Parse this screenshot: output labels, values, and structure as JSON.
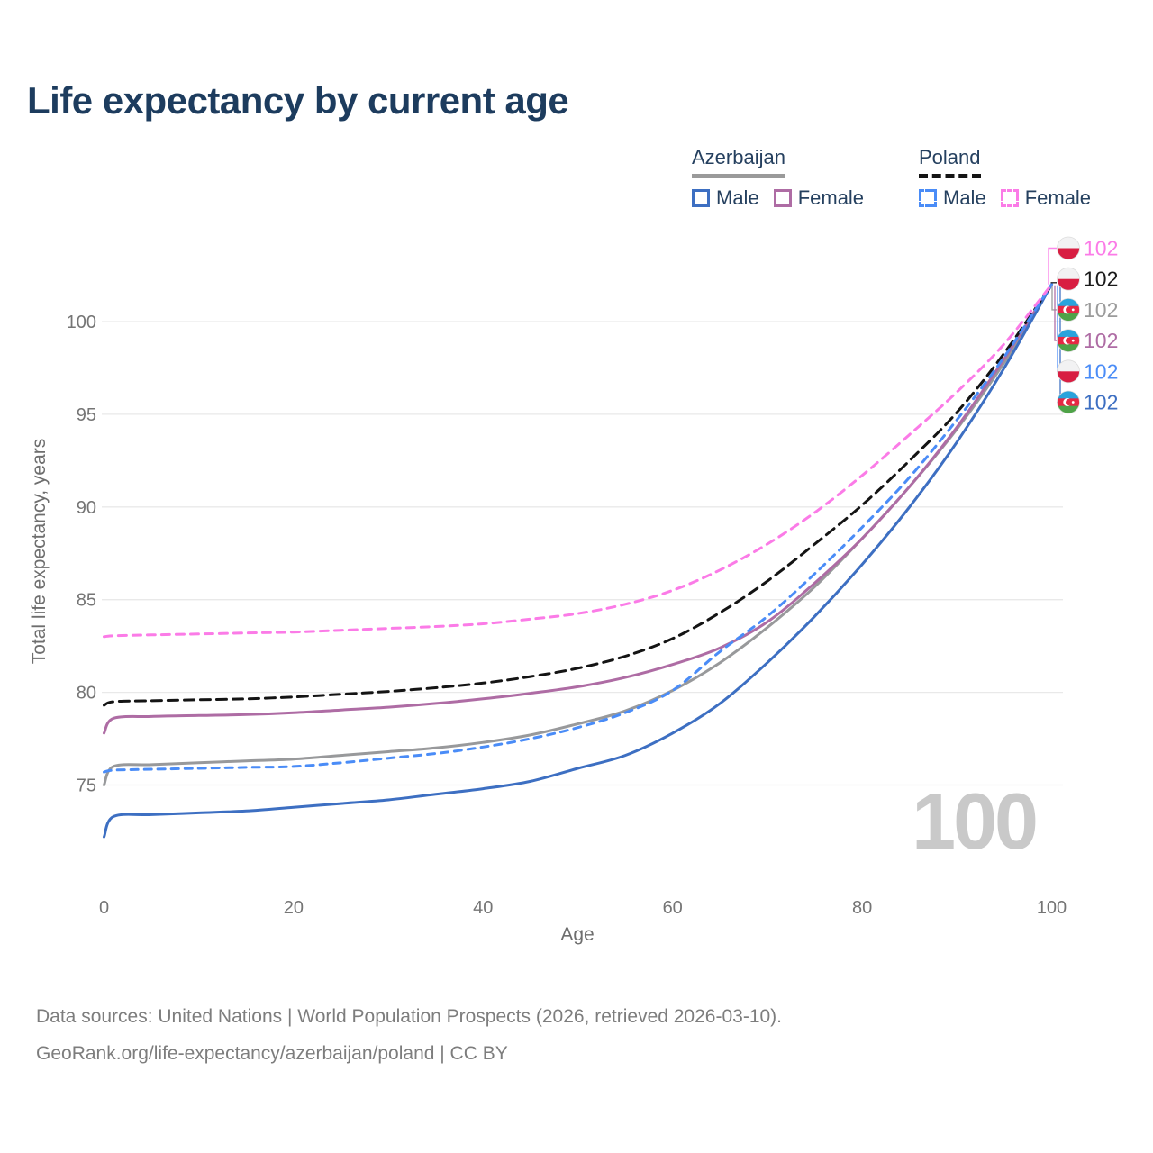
{
  "title": "Life expectancy by current age",
  "legend": {
    "groups": [
      {
        "label": "Azerbaijan",
        "line_style": "solid",
        "line_color": "#9a9a9a",
        "items": [
          {
            "label": "Male",
            "color": "#3d6fc2",
            "dash": "solid"
          },
          {
            "label": "Female",
            "color": "#ae6ca4",
            "dash": "solid"
          }
        ]
      },
      {
        "label": "Poland",
        "line_style": "dashed",
        "line_color": "#141414",
        "items": [
          {
            "label": "Male",
            "color": "#4a8cf7",
            "dash": "dashed"
          },
          {
            "label": "Female",
            "color": "#fb7be7",
            "dash": "dashed"
          }
        ]
      }
    ]
  },
  "chart_data": {
    "type": "line",
    "title": "Life expectancy by current age",
    "xlabel": "Age",
    "ylabel": "Total life expectancy, years",
    "xticks": [
      0,
      20,
      40,
      60,
      80,
      100
    ],
    "yticks": [
      75,
      80,
      85,
      90,
      95,
      100
    ],
    "xlim": [
      0,
      100
    ],
    "ylim": [
      71.5,
      103
    ],
    "grid": "horizontal-only",
    "grid_color": "#e9e9e9",
    "tick_color": "#757575",
    "hover_age_label": "100",
    "x": [
      0,
      1,
      5,
      10,
      15,
      20,
      25,
      30,
      35,
      40,
      45,
      50,
      55,
      60,
      65,
      70,
      75,
      80,
      85,
      90,
      95,
      100
    ],
    "series": [
      {
        "name": "Azerbaijan",
        "country": "Azerbaijan",
        "sex": "Both",
        "color": "#98999b",
        "label_color": "#9b9b9b",
        "dash": "solid",
        "flag": "az",
        "end_label": "102",
        "end_value": 102,
        "end_row": 2,
        "values": [
          75.0,
          76.0,
          76.1,
          76.2,
          76.3,
          76.4,
          76.6,
          76.8,
          77.0,
          77.3,
          77.7,
          78.3,
          79.0,
          80.1,
          81.6,
          83.5,
          85.7,
          88.3,
          91.1,
          94.2,
          97.8,
          102
        ]
      },
      {
        "name": "Azerbaijan Female",
        "country": "Azerbaijan",
        "sex": "Female",
        "color": "#ae6ca4",
        "label_color": "#ae6ca4",
        "dash": "solid",
        "flag": "az",
        "end_label": "102",
        "end_value": 102,
        "end_row": 3,
        "values": [
          77.8,
          78.6,
          78.7,
          78.75,
          78.8,
          78.9,
          79.05,
          79.2,
          79.4,
          79.65,
          79.95,
          80.3,
          80.8,
          81.5,
          82.4,
          83.8,
          85.9,
          88.3,
          91.1,
          94.3,
          98.0,
          102
        ]
      },
      {
        "name": "Azerbaijan Male",
        "country": "Azerbaijan",
        "sex": "Male",
        "color": "#3d6fc2",
        "label_color": "#3d6fc2",
        "dash": "solid",
        "flag": "az",
        "end_label": "102",
        "end_value": 102,
        "end_row": 5,
        "values": [
          72.2,
          73.3,
          73.4,
          73.5,
          73.6,
          73.8,
          74.0,
          74.2,
          74.5,
          74.8,
          75.2,
          75.9,
          76.6,
          77.8,
          79.4,
          81.6,
          84.1,
          86.9,
          90.0,
          93.5,
          97.5,
          102
        ]
      },
      {
        "name": "Poland",
        "country": "Poland",
        "sex": "Both",
        "color": "#141414",
        "label_color": "#1a1a1a",
        "dash": "11 7",
        "flag": "pl",
        "end_label": "102",
        "end_value": 102,
        "end_row": 1,
        "values": [
          79.3,
          79.5,
          79.55,
          79.6,
          79.65,
          79.75,
          79.9,
          80.05,
          80.25,
          80.5,
          80.85,
          81.3,
          81.95,
          82.9,
          84.3,
          86.0,
          88.0,
          90.1,
          92.5,
          95.1,
          98.3,
          102
        ]
      },
      {
        "name": "Poland Male",
        "country": "Poland",
        "sex": "Male",
        "color": "#4a8cf7",
        "label_color": "#4a8cf7",
        "dash": "8 7",
        "flag": "pl",
        "end_label": "102",
        "end_value": 102,
        "end_row": 4,
        "values": [
          75.7,
          75.8,
          75.85,
          75.9,
          75.95,
          76.0,
          76.2,
          76.45,
          76.7,
          77.05,
          77.5,
          78.1,
          78.9,
          80.1,
          82.2,
          84.1,
          86.4,
          88.9,
          91.6,
          94.7,
          98.1,
          102
        ]
      },
      {
        "name": "Poland Female",
        "country": "Poland",
        "sex": "Female",
        "color": "#fb7be7",
        "label_color": "#fb7be7",
        "dash": "9 7",
        "flag": "pl",
        "end_label": "102",
        "end_value": 102,
        "end_row": 0,
        "values": [
          83.0,
          83.05,
          83.1,
          83.15,
          83.2,
          83.25,
          83.35,
          83.45,
          83.55,
          83.7,
          83.95,
          84.25,
          84.75,
          85.5,
          86.6,
          88.0,
          89.7,
          91.7,
          93.9,
          96.2,
          98.8,
          102
        ]
      }
    ],
    "flag_colors": {
      "poland_white": "#f2f2f3",
      "poland_red": "#d81e42",
      "azerbaijan_blue": "#29a3dc",
      "azerbaijan_red": "#e62844",
      "azerbaijan_green": "#4fa348"
    }
  },
  "footer": {
    "line1": "Data sources: United Nations | World Population Prospects (2026, retrieved 2026-03-10).",
    "line2": "GeoRank.org/life-expectancy/azerbaijan/poland | CC BY"
  }
}
